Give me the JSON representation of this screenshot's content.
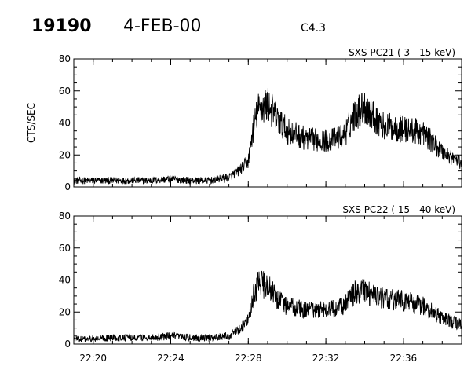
{
  "header": {
    "event_id": "19190",
    "date": "4-FEB-00",
    "goes_class": "C4.3"
  },
  "chart_data": [
    {
      "type": "line",
      "title": "SXS PC21  (  3 - 15 keV)",
      "ylabel": "CTS/SEC",
      "xlabel": "",
      "ylim": [
        0,
        80
      ],
      "yticks": [
        "0",
        "20",
        "40",
        "60",
        "80"
      ],
      "xlim": [
        "22:19",
        "22:39"
      ],
      "xticks": [
        "22:20",
        "22:24",
        "22:28",
        "22:32",
        "22:36"
      ],
      "grid": false,
      "series": [
        {
          "x": [
            "22:19",
            "22:20",
            "22:21",
            "22:22",
            "22:23",
            "22:24",
            "22:25",
            "22:26",
            "22:27",
            "22:27:30",
            "22:28",
            "22:28:15",
            "22:28:30",
            "22:29",
            "22:29:30",
            "22:30",
            "22:31",
            "22:32",
            "22:32:30",
            "22:33",
            "22:33:30",
            "22:34",
            "22:34:30",
            "22:35",
            "22:36",
            "22:37",
            "22:38",
            "22:39"
          ],
          "values": [
            4,
            4,
            4,
            4,
            4,
            5,
            4,
            4,
            6,
            10,
            16,
            36,
            48,
            52,
            42,
            35,
            30,
            29,
            30,
            33,
            46,
            50,
            44,
            38,
            36,
            34,
            22,
            15
          ]
        }
      ]
    },
    {
      "type": "line",
      "title": "SXS PC22  ( 15 - 40 keV)",
      "ylabel": "",
      "xlabel": "",
      "ylim": [
        0,
        80
      ],
      "yticks": [
        "0",
        "20",
        "40",
        "60",
        "80"
      ],
      "xlim": [
        "22:19",
        "22:39"
      ],
      "xticks": [
        "22:20",
        "22:24",
        "22:28",
        "22:32",
        "22:36"
      ],
      "grid": false,
      "series": [
        {
          "x": [
            "22:19",
            "22:20",
            "22:21",
            "22:22",
            "22:23",
            "22:24",
            "22:25",
            "22:26",
            "22:27",
            "22:27:30",
            "22:28",
            "22:28:15",
            "22:28:30",
            "22:29",
            "22:29:30",
            "22:30",
            "22:31",
            "22:32",
            "22:32:30",
            "22:33",
            "22:33:30",
            "22:34",
            "22:34:30",
            "22:35",
            "22:36",
            "22:37",
            "22:38",
            "22:39"
          ],
          "values": [
            3,
            3,
            4,
            4,
            4,
            5,
            4,
            4,
            5,
            9,
            15,
            30,
            38,
            36,
            28,
            24,
            21,
            22,
            22,
            25,
            32,
            33,
            30,
            28,
            27,
            24,
            16,
            12
          ]
        }
      ]
    }
  ]
}
